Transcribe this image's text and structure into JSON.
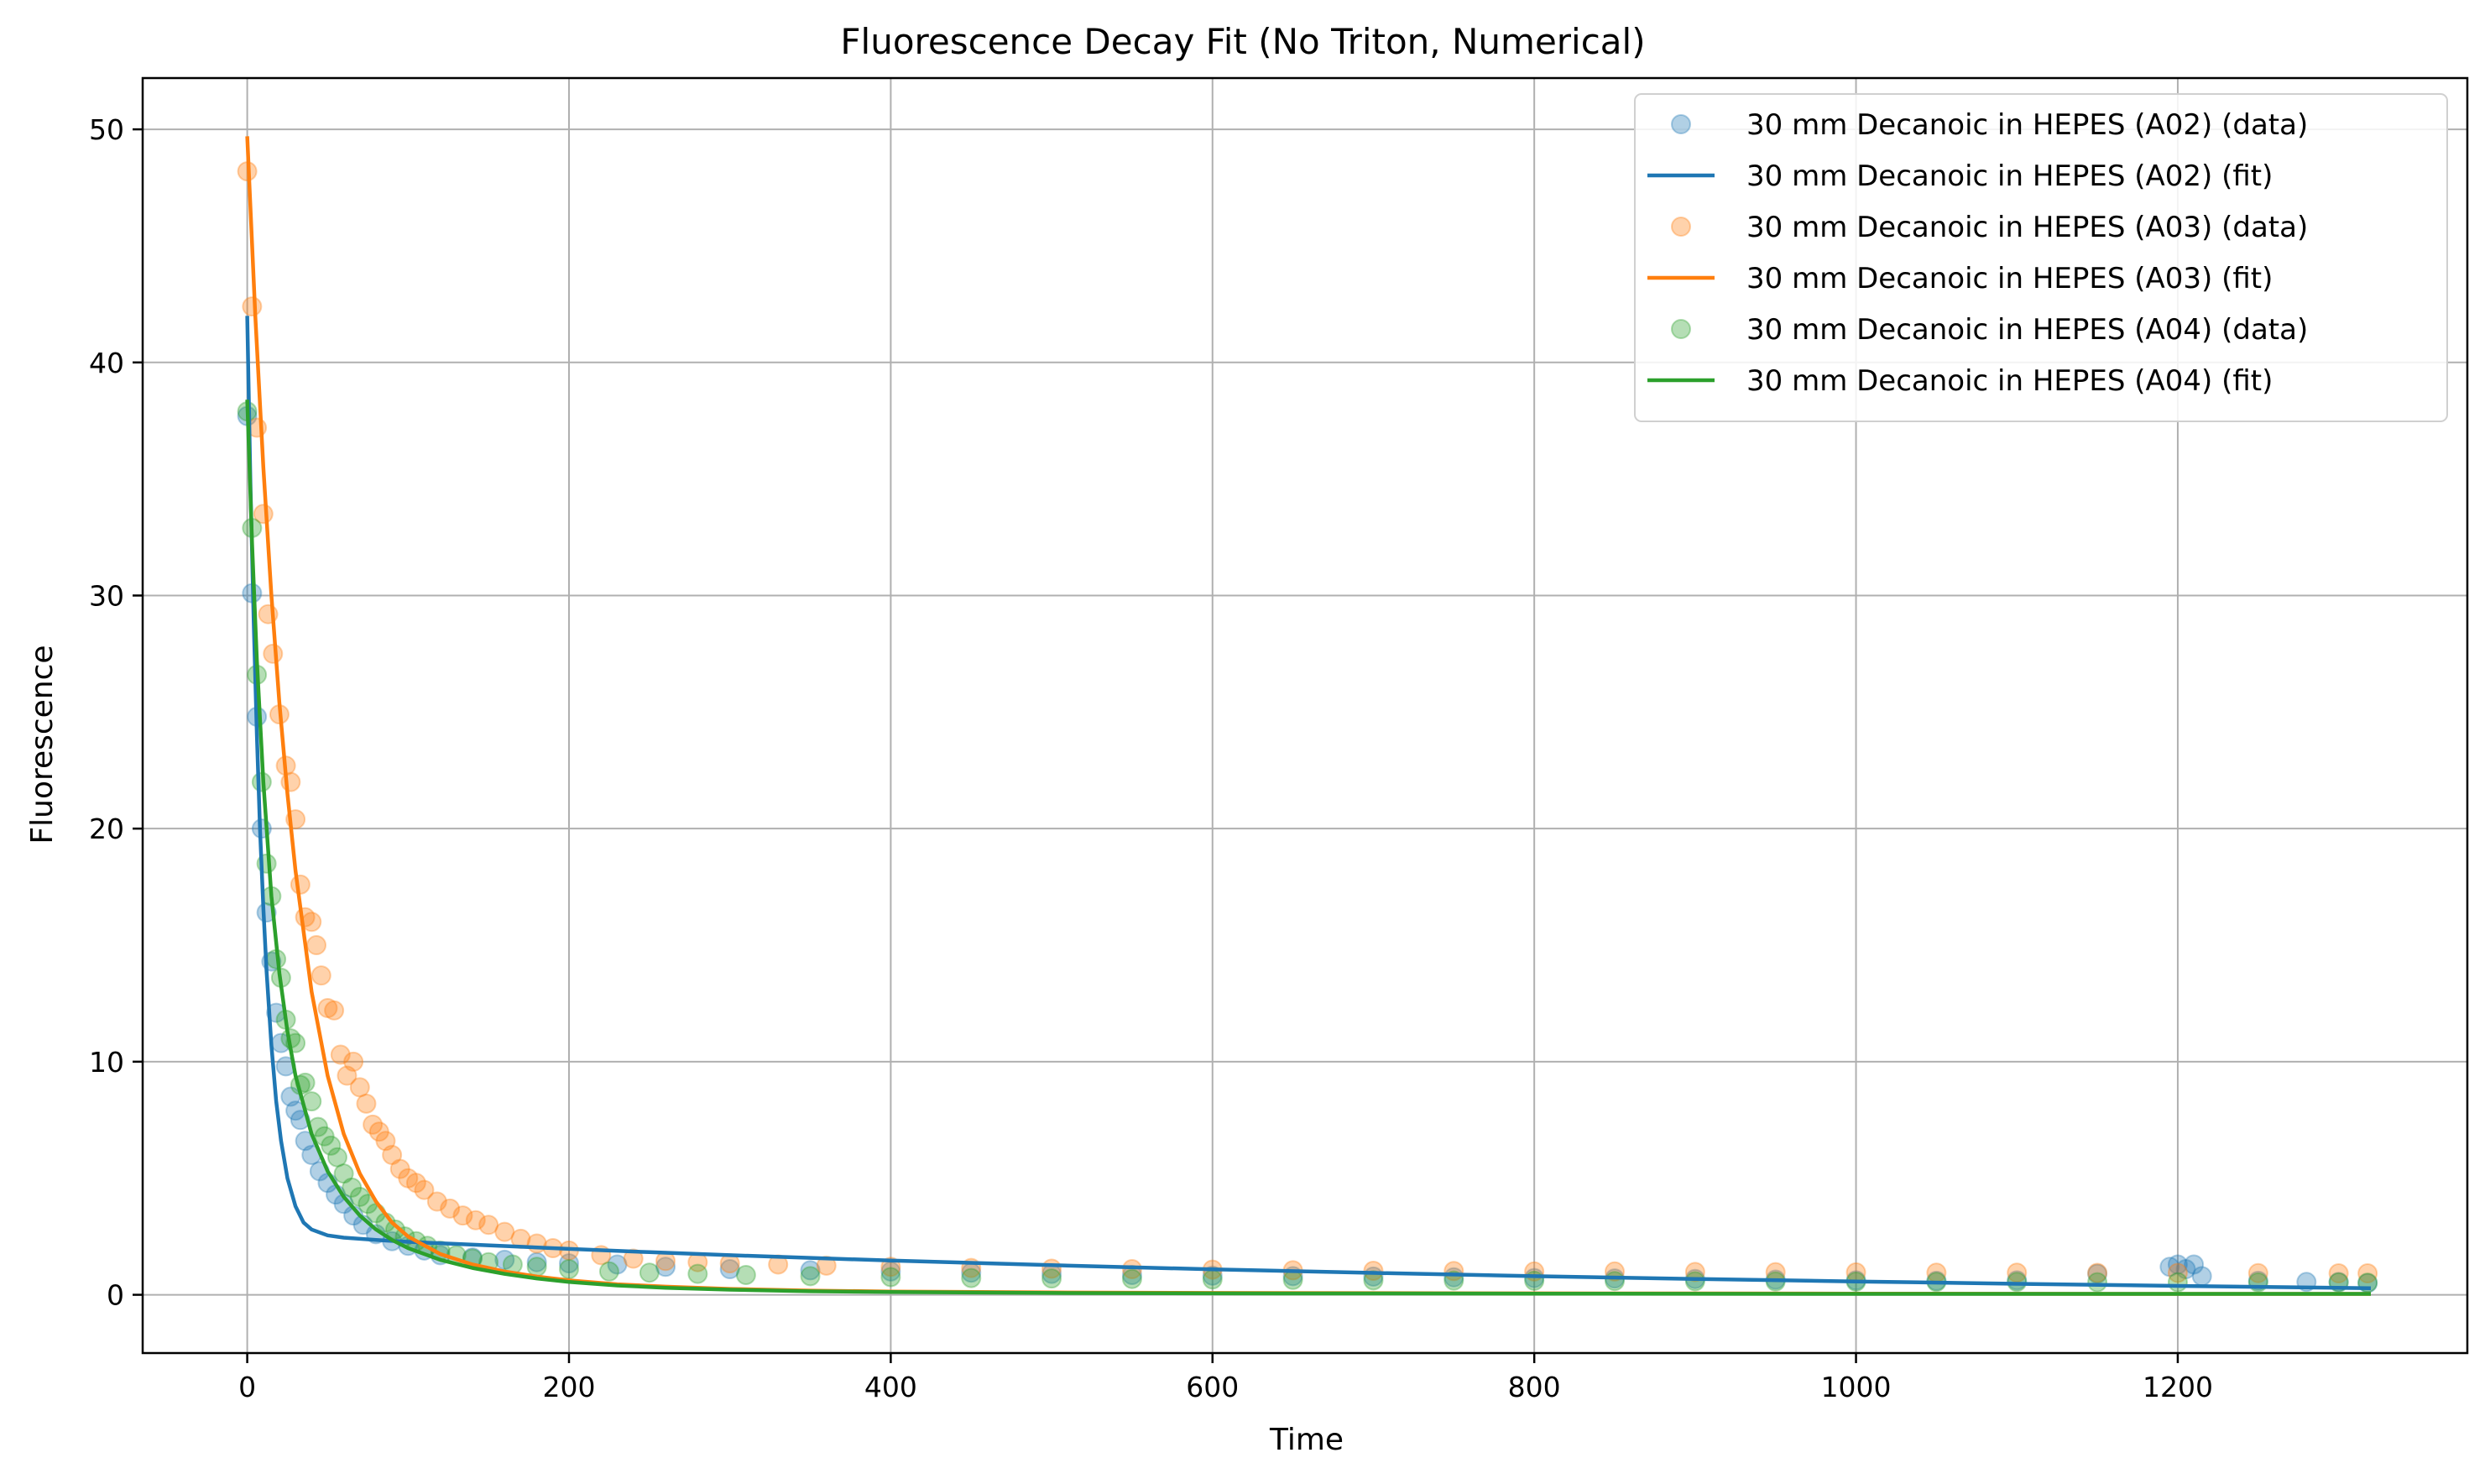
{
  "chart_data": {
    "type": "scatter",
    "title": "Fluorescence Decay Fit (No Triton, Numerical)",
    "xlabel": "Time",
    "ylabel": "Fluorescence",
    "xlim": [
      -65,
      1380
    ],
    "ylim": [
      -2.5,
      52.2
    ],
    "xticks": [
      0,
      200,
      400,
      600,
      800,
      1000,
      1200
    ],
    "yticks": [
      0,
      10,
      20,
      30,
      40,
      50
    ],
    "grid": true,
    "legend_position": "top-right",
    "colors": {
      "blue": "#1f77b4",
      "orange": "#ff7f0e",
      "green": "#2ca02c"
    },
    "series": [
      {
        "name": "30 mm Decanoic in HEPES (A02) (data)",
        "kind": "scatter",
        "color": "#1f77b4",
        "x": [
          0,
          3,
          6,
          9,
          12,
          15,
          18,
          21,
          24,
          27,
          30,
          33,
          36,
          40,
          45,
          50,
          55,
          60,
          66,
          72,
          80,
          90,
          100,
          110,
          120,
          140,
          160,
          180,
          200,
          230,
          260,
          300,
          350,
          400,
          450,
          500,
          550,
          600,
          650,
          700,
          750,
          800,
          850,
          900,
          950,
          1000,
          1050,
          1100,
          1150,
          1195,
          1200,
          1205,
          1210,
          1215,
          1250,
          1280,
          1300,
          1318
        ],
        "y": [
          37.7,
          30.1,
          24.8,
          20.0,
          16.4,
          14.3,
          12.1,
          10.8,
          9.8,
          8.5,
          7.9,
          7.5,
          6.6,
          6.0,
          5.3,
          4.8,
          4.3,
          3.9,
          3.4,
          3.0,
          2.6,
          2.3,
          2.1,
          1.9,
          1.7,
          1.6,
          1.5,
          1.4,
          1.35,
          1.3,
          1.2,
          1.1,
          1.05,
          1.0,
          0.95,
          0.9,
          0.85,
          0.82,
          0.8,
          0.78,
          0.75,
          0.72,
          0.7,
          0.68,
          0.65,
          0.62,
          0.6,
          0.62,
          0.9,
          1.2,
          1.3,
          1.1,
          1.3,
          0.8,
          0.6,
          0.55,
          0.55,
          0.5
        ]
      },
      {
        "name": "30 mm Decanoic in HEPES (A02) (fit)",
        "kind": "line",
        "color": "#1f77b4",
        "x": [
          0,
          2,
          4,
          6,
          8,
          10,
          12,
          15,
          18,
          21,
          25,
          30,
          35,
          40,
          50,
          60,
          80,
          100,
          130,
          160,
          200,
          250,
          300,
          400,
          500,
          600,
          700,
          800,
          900,
          1000,
          1100,
          1200,
          1320
        ],
        "y": [
          42.0,
          34.8,
          28.9,
          24.0,
          19.9,
          16.6,
          13.9,
          10.7,
          8.3,
          6.6,
          5.0,
          3.8,
          3.1,
          2.8,
          2.55,
          2.45,
          2.35,
          2.27,
          2.18,
          2.09,
          1.97,
          1.83,
          1.7,
          1.47,
          1.27,
          1.09,
          0.94,
          0.8,
          0.68,
          0.57,
          0.47,
          0.38,
          0.28
        ]
      },
      {
        "name": "30 mm Decanoic in HEPES (A03) (data)",
        "kind": "scatter",
        "color": "#ff7f0e",
        "x": [
          0,
          3,
          6,
          10,
          13,
          16,
          20,
          24,
          27,
          30,
          33,
          36,
          40,
          43,
          46,
          50,
          54,
          58,
          62,
          66,
          70,
          74,
          78,
          82,
          86,
          90,
          95,
          100,
          105,
          110,
          118,
          126,
          134,
          142,
          150,
          160,
          170,
          180,
          190,
          200,
          220,
          240,
          260,
          280,
          300,
          330,
          360,
          400,
          450,
          500,
          550,
          600,
          650,
          700,
          750,
          800,
          850,
          900,
          950,
          1000,
          1050,
          1100,
          1150,
          1200,
          1250,
          1300,
          1318
        ],
        "y": [
          48.2,
          42.4,
          37.2,
          33.5,
          29.2,
          27.5,
          24.9,
          22.7,
          22.0,
          20.4,
          17.6,
          16.2,
          16.0,
          15.0,
          13.7,
          12.3,
          12.2,
          10.3,
          9.4,
          10.0,
          8.9,
          8.2,
          7.3,
          7.0,
          6.6,
          6.0,
          5.4,
          5.0,
          4.8,
          4.5,
          4.0,
          3.7,
          3.4,
          3.2,
          3.0,
          2.7,
          2.4,
          2.2,
          2.0,
          1.9,
          1.7,
          1.55,
          1.45,
          1.4,
          1.35,
          1.3,
          1.25,
          1.2,
          1.15,
          1.12,
          1.1,
          1.08,
          1.05,
          1.03,
          1.02,
          1.0,
          1.0,
          0.98,
          0.97,
          0.96,
          0.95,
          0.95,
          0.94,
          0.94,
          0.93,
          0.92,
          0.92
        ]
      },
      {
        "name": "30 mm Decanoic in HEPES (A03) (fit)",
        "kind": "line",
        "color": "#ff7f0e",
        "x": [
          0,
          5,
          10,
          15,
          20,
          25,
          30,
          40,
          50,
          60,
          70,
          80,
          90,
          100,
          120,
          140,
          160,
          180,
          200,
          230,
          260,
          300,
          350,
          400,
          500,
          600,
          800,
          1000,
          1200,
          1320
        ],
        "y": [
          49.7,
          42.0,
          35.5,
          30.0,
          25.4,
          21.5,
          18.2,
          13.0,
          9.4,
          6.9,
          5.2,
          4.0,
          3.1,
          2.5,
          1.75,
          1.3,
          1.0,
          0.78,
          0.62,
          0.45,
          0.35,
          0.25,
          0.18,
          0.14,
          0.1,
          0.08,
          0.06,
          0.05,
          0.04,
          0.04
        ]
      },
      {
        "name": "30 mm Decanoic in HEPES (A04) (data)",
        "kind": "scatter",
        "color": "#2ca02c",
        "x": [
          0,
          3,
          6,
          9,
          12,
          15,
          18,
          21,
          24,
          27,
          30,
          33,
          36,
          40,
          44,
          48,
          52,
          56,
          60,
          65,
          70,
          75,
          80,
          86,
          92,
          98,
          105,
          112,
          120,
          130,
          140,
          150,
          165,
          180,
          200,
          225,
          250,
          280,
          310,
          350,
          400,
          450,
          500,
          550,
          600,
          650,
          700,
          750,
          800,
          850,
          900,
          950,
          1000,
          1050,
          1100,
          1150,
          1200,
          1250,
          1300,
          1318
        ],
        "y": [
          37.9,
          32.9,
          26.6,
          22.0,
          18.5,
          17.1,
          14.4,
          13.6,
          11.8,
          11.0,
          10.8,
          9.0,
          9.1,
          8.3,
          7.2,
          6.8,
          6.4,
          5.9,
          5.2,
          4.6,
          4.2,
          3.9,
          3.5,
          3.1,
          2.8,
          2.5,
          2.3,
          2.1,
          1.9,
          1.7,
          1.55,
          1.4,
          1.3,
          1.2,
          1.1,
          1.0,
          0.95,
          0.9,
          0.85,
          0.8,
          0.76,
          0.72,
          0.7,
          0.68,
          0.66,
          0.64,
          0.62,
          0.61,
          0.6,
          0.59,
          0.58,
          0.57,
          0.56,
          0.55,
          0.55,
          0.54,
          0.54,
          0.53,
          0.53,
          0.52
        ]
      },
      {
        "name": "30 mm Decanoic in HEPES (A04) (fit)",
        "kind": "line",
        "color": "#2ca02c",
        "x": [
          0,
          3,
          6,
          10,
          15,
          20,
          25,
          30,
          40,
          50,
          60,
          70,
          80,
          90,
          100,
          120,
          140,
          160,
          180,
          200,
          230,
          260,
          300,
          350,
          400,
          500,
          600,
          800,
          1000,
          1200,
          1320
        ],
        "y": [
          38.4,
          32.2,
          27.2,
          22.0,
          17.1,
          13.8,
          11.3,
          9.4,
          6.9,
          5.3,
          4.2,
          3.4,
          2.8,
          2.35,
          2.0,
          1.5,
          1.15,
          0.9,
          0.7,
          0.55,
          0.4,
          0.3,
          0.22,
          0.15,
          0.12,
          0.08,
          0.06,
          0.05,
          0.04,
          0.04,
          0.04
        ]
      }
    ]
  }
}
